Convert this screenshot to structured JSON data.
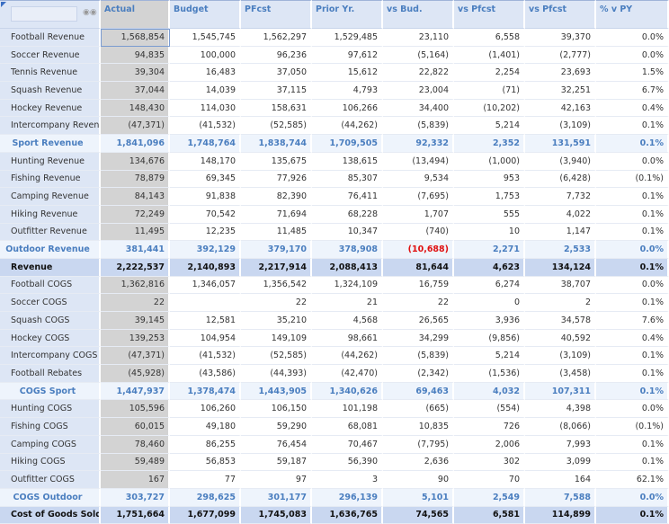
{
  "headers": [
    "",
    "Actual",
    "Budget",
    "PFcst",
    "Prior Yr.",
    "vs Bud.",
    "vs Pfcst",
    "vs Pfcst",
    "% v PY"
  ],
  "colors": {
    "header_bg": "#dde6f5",
    "header_text": "#4a7ebf",
    "actual_bg": "#d3d3d3",
    "subtotal_text": "#4a7ebf",
    "total_bg": "#c9d7f0",
    "negative_highlight": "#e01010"
  },
  "icons": {
    "filter": "binoculars-icon"
  },
  "rows": [
    {
      "type": "normal",
      "label": "Football Revenue",
      "values": [
        "1,568,854",
        "1,545,745",
        "1,562,297",
        "1,529,485",
        "23,110",
        "6,558",
        "39,370",
        "0.0%"
      ]
    },
    {
      "type": "normal",
      "label": "Soccer Revenue",
      "values": [
        "94,835",
        "100,000",
        "96,236",
        "97,612",
        "(5,164)",
        "(1,401)",
        "(2,777)",
        "0.0%"
      ]
    },
    {
      "type": "normal",
      "label": "Tennis Revenue",
      "values": [
        "39,304",
        "16,483",
        "37,050",
        "15,612",
        "22,822",
        "2,254",
        "23,693",
        "1.5%"
      ]
    },
    {
      "type": "normal",
      "label": "Squash Revenue",
      "values": [
        "37,044",
        "14,039",
        "37,115",
        "4,793",
        "23,004",
        "(71)",
        "32,251",
        "6.7%"
      ]
    },
    {
      "type": "normal",
      "label": "Hockey Revenue",
      "values": [
        "148,430",
        "114,030",
        "158,631",
        "106,266",
        "34,400",
        "(10,202)",
        "42,163",
        "0.4%"
      ]
    },
    {
      "type": "normal",
      "label": "Intercompany Revenue",
      "values": [
        "(47,371)",
        "(41,532)",
        "(52,585)",
        "(44,262)",
        "(5,839)",
        "5,214",
        "(3,109)",
        "0.1%"
      ]
    },
    {
      "type": "sub",
      "label": "Sport Revenue",
      "values": [
        "1,841,096",
        "1,748,764",
        "1,838,744",
        "1,709,505",
        "92,332",
        "2,352",
        "131,591",
        "0.1%"
      ]
    },
    {
      "type": "normal",
      "label": "Hunting Revenue",
      "values": [
        "134,676",
        "148,170",
        "135,675",
        "138,615",
        "(13,494)",
        "(1,000)",
        "(3,940)",
        "0.0%"
      ]
    },
    {
      "type": "normal",
      "label": "Fishing Revenue",
      "values": [
        "78,879",
        "69,345",
        "77,926",
        "85,307",
        "9,534",
        "953",
        "(6,428)",
        "(0.1%)"
      ]
    },
    {
      "type": "normal",
      "label": "Camping Revenue",
      "values": [
        "84,143",
        "91,838",
        "82,390",
        "76,411",
        "(7,695)",
        "1,753",
        "7,732",
        "0.1%"
      ]
    },
    {
      "type": "normal",
      "label": "Hiking Revenue",
      "values": [
        "72,249",
        "70,542",
        "71,694",
        "68,228",
        "1,707",
        "555",
        "4,022",
        "0.1%"
      ]
    },
    {
      "type": "normal",
      "label": "Outfitter Revenue",
      "values": [
        "11,495",
        "12,235",
        "11,485",
        "10,347",
        "(740)",
        "10",
        "1,147",
        "0.1%"
      ]
    },
    {
      "type": "sub",
      "label": "Outdoor Revenue",
      "values": [
        "381,441",
        "392,129",
        "379,170",
        "378,908",
        "(10,688)",
        "2,271",
        "2,533",
        "0.0%"
      ],
      "highlight": 4
    },
    {
      "type": "tot",
      "label": "Revenue",
      "values": [
        "2,222,537",
        "2,140,893",
        "2,217,914",
        "2,088,413",
        "81,644",
        "4,623",
        "134,124",
        "0.1%"
      ]
    },
    {
      "type": "normal",
      "label": "Football COGS",
      "values": [
        "1,362,816",
        "1,346,057",
        "1,356,542",
        "1,324,109",
        "16,759",
        "6,274",
        "38,707",
        "0.0%"
      ]
    },
    {
      "type": "normal",
      "label": "Soccer COGS",
      "values": [
        "22",
        "",
        "22",
        "21",
        "22",
        "0",
        "2",
        "0.1%"
      ]
    },
    {
      "type": "normal",
      "label": "Squash COGS",
      "values": [
        "39,145",
        "12,581",
        "35,210",
        "4,568",
        "26,565",
        "3,936",
        "34,578",
        "7.6%"
      ]
    },
    {
      "type": "normal",
      "label": "Hockey COGS",
      "values": [
        "139,253",
        "104,954",
        "149,109",
        "98,661",
        "34,299",
        "(9,856)",
        "40,592",
        "0.4%"
      ]
    },
    {
      "type": "normal",
      "label": "Intercompany COGS",
      "values": [
        "(47,371)",
        "(41,532)",
        "(52,585)",
        "(44,262)",
        "(5,839)",
        "5,214",
        "(3,109)",
        "0.1%"
      ]
    },
    {
      "type": "normal",
      "label": "Football Rebates",
      "values": [
        "(45,928)",
        "(43,586)",
        "(44,393)",
        "(42,470)",
        "(2,342)",
        "(1,536)",
        "(3,458)",
        "0.1%"
      ]
    },
    {
      "type": "sub",
      "label": "COGS Sport",
      "values": [
        "1,447,937",
        "1,378,474",
        "1,443,905",
        "1,340,626",
        "69,463",
        "4,032",
        "107,311",
        "0.1%"
      ]
    },
    {
      "type": "normal",
      "label": "Hunting COGS",
      "values": [
        "105,596",
        "106,260",
        "106,150",
        "101,198",
        "(665)",
        "(554)",
        "4,398",
        "0.0%"
      ]
    },
    {
      "type": "normal",
      "label": "Fishing COGS",
      "values": [
        "60,015",
        "49,180",
        "59,290",
        "68,081",
        "10,835",
        "726",
        "(8,066)",
        "(0.1%)"
      ]
    },
    {
      "type": "normal",
      "label": "Camping COGS",
      "values": [
        "78,460",
        "86,255",
        "76,454",
        "70,467",
        "(7,795)",
        "2,006",
        "7,993",
        "0.1%"
      ]
    },
    {
      "type": "normal",
      "label": "Hiking COGS",
      "values": [
        "59,489",
        "56,853",
        "59,187",
        "56,390",
        "2,636",
        "302",
        "3,099",
        "0.1%"
      ]
    },
    {
      "type": "normal",
      "label": "Outfitter COGS",
      "values": [
        "167",
        "77",
        "97",
        "3",
        "90",
        "70",
        "164",
        "62.1%"
      ]
    },
    {
      "type": "sub",
      "label": "COGS Outdoor",
      "values": [
        "303,727",
        "298,625",
        "301,177",
        "296,139",
        "5,101",
        "2,549",
        "7,588",
        "0.0%"
      ]
    },
    {
      "type": "tot",
      "label": "Cost of Goods Sold",
      "values": [
        "1,751,664",
        "1,677,099",
        "1,745,083",
        "1,636,765",
        "74,565",
        "6,581",
        "114,899",
        "0.1%"
      ]
    }
  ]
}
